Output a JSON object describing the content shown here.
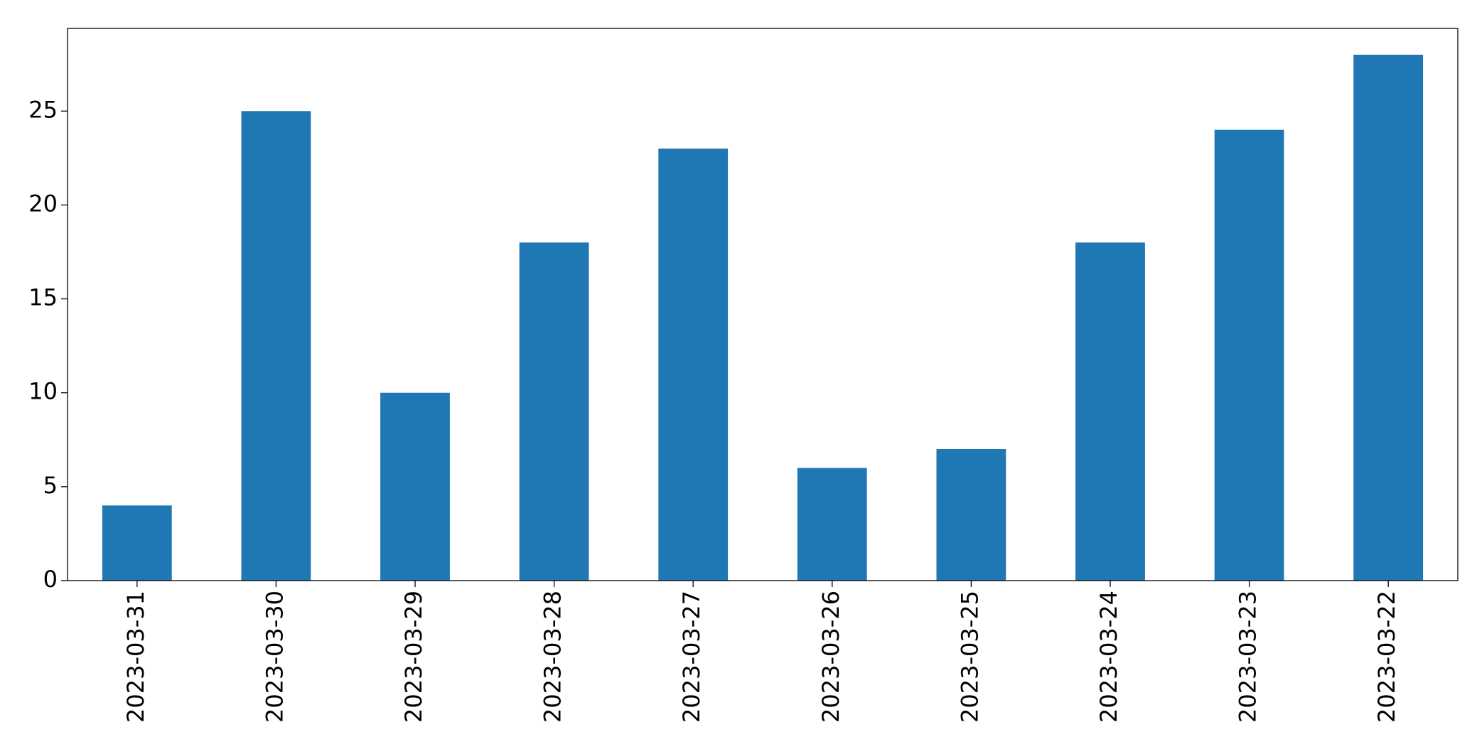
{
  "chart_data": {
    "type": "bar",
    "categories": [
      "2023-03-31",
      "2023-03-30",
      "2023-03-29",
      "2023-03-28",
      "2023-03-27",
      "2023-03-26",
      "2023-03-25",
      "2023-03-24",
      "2023-03-23",
      "2023-03-22"
    ],
    "values": [
      4,
      25,
      10,
      18,
      23,
      6,
      7,
      18,
      24,
      28
    ],
    "color": "#1f77b4",
    "ylim": [
      0,
      29.4
    ],
    "yticks": [
      0,
      5,
      10,
      15,
      20,
      25
    ],
    "grid": false
  }
}
